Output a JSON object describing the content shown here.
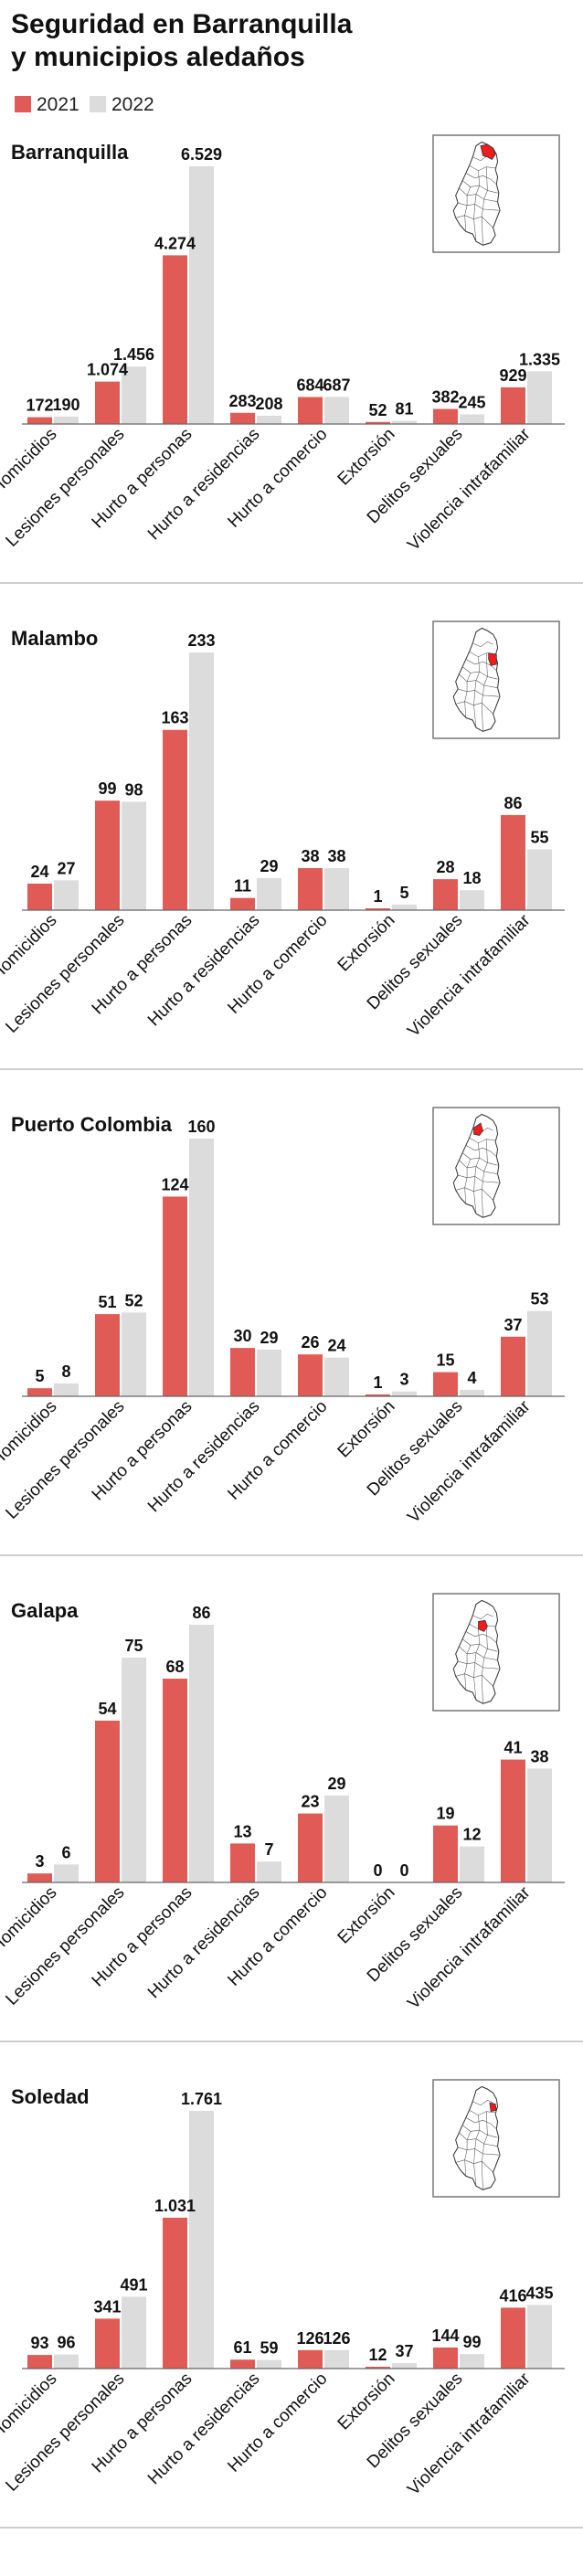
{
  "title_line1": "Seguridad en Barranquilla",
  "title_line2": "y municipios aledaños",
  "legend": [
    {
      "label": "2021",
      "color": "#e05b55"
    },
    {
      "label": "2022",
      "color": "#dcdcdc"
    }
  ],
  "colors": {
    "y2021": "#e05b55",
    "y2022": "#dcdcdc",
    "map_highlight": "#ee1c1c",
    "separator": "#bdbdbd"
  },
  "chart_data": [
    {
      "type": "bar",
      "title": "Barranquilla",
      "categories": [
        "Homicidios",
        "Lesiones personales",
        "Hurto a personas",
        "Hurto a residencias",
        "Hurto a comercio",
        "Extorsión",
        "Delitos sexuales",
        "Violencia intrafamiliar"
      ],
      "series": [
        {
          "name": "2021",
          "values": [
            172,
            1074,
            4274,
            283,
            684,
            52,
            382,
            929
          ],
          "labels": [
            "172",
            "1.074",
            "4.274",
            "283",
            "684",
            "52",
            "382",
            "929"
          ]
        },
        {
          "name": "2022",
          "values": [
            190,
            1456,
            6529,
            208,
            687,
            81,
            245,
            1335
          ],
          "labels": [
            "190",
            "1.456",
            "6.529",
            "208",
            "687",
            "81",
            "245",
            "1.335"
          ]
        }
      ],
      "map_highlight": "barranquilla",
      "ylim": [
        0,
        6529
      ]
    },
    {
      "type": "bar",
      "title": "Malambo",
      "categories": [
        "Homicidios",
        "Lesiones personales",
        "Hurto a personas",
        "Hurto a residencias",
        "Hurto a comercio",
        "Extorsión",
        "Delitos sexuales",
        "Violencia intrafamiliar"
      ],
      "series": [
        {
          "name": "2021",
          "values": [
            24,
            99,
            163,
            11,
            38,
            1,
            28,
            86
          ],
          "labels": [
            "24",
            "99",
            "163",
            "11",
            "38",
            "1",
            "28",
            "86"
          ]
        },
        {
          "name": "2022",
          "values": [
            27,
            98,
            233,
            29,
            38,
            5,
            18,
            55
          ],
          "labels": [
            "27",
            "98",
            "233",
            "29",
            "38",
            "5",
            "18",
            "55"
          ]
        }
      ],
      "map_highlight": "malambo",
      "ylim": [
        0,
        233
      ]
    },
    {
      "type": "bar",
      "title": "Puerto Colombia",
      "categories": [
        "Homicidios",
        "Lesiones personales",
        "Hurto a personas",
        "Hurto a residencias",
        "Hurto a comercio",
        "Extorsión",
        "Delitos sexuales",
        "Violencia intrafamiliar"
      ],
      "series": [
        {
          "name": "2021",
          "values": [
            5,
            51,
            124,
            30,
            26,
            1,
            15,
            37
          ],
          "labels": [
            "5",
            "51",
            "124",
            "30",
            "26",
            "1",
            "15",
            "37"
          ]
        },
        {
          "name": "2022",
          "values": [
            8,
            52,
            160,
            29,
            24,
            3,
            4,
            53
          ],
          "labels": [
            "8",
            "52",
            "160",
            "29",
            "24",
            "3",
            "4",
            "53"
          ]
        }
      ],
      "map_highlight": "puerto-colombia",
      "ylim": [
        0,
        160
      ]
    },
    {
      "type": "bar",
      "title": "Galapa",
      "categories": [
        "Homicidios",
        "Lesiones personales",
        "Hurto a personas",
        "Hurto a residencias",
        "Hurto a comercio",
        "Extorsión",
        "Delitos sexuales",
        "Violencia intrafamiliar"
      ],
      "series": [
        {
          "name": "2021",
          "values": [
            3,
            54,
            68,
            13,
            23,
            0,
            19,
            41
          ],
          "labels": [
            "3",
            "54",
            "68",
            "13",
            "23",
            "0",
            "19",
            "41"
          ]
        },
        {
          "name": "2022",
          "values": [
            6,
            75,
            86,
            7,
            29,
            0,
            12,
            38
          ],
          "labels": [
            "6",
            "75",
            "86",
            "7",
            "29",
            "0",
            "12",
            "38"
          ]
        }
      ],
      "map_highlight": "galapa",
      "ylim": [
        0,
        86
      ]
    },
    {
      "type": "bar",
      "title": "Soledad",
      "categories": [
        "Homicidios",
        "Lesiones personales",
        "Hurto a personas",
        "Hurto a residencias",
        "Hurto a comercio",
        "Extorsión",
        "Delitos sexuales",
        "Violencia intrafamiliar"
      ],
      "series": [
        {
          "name": "2021",
          "values": [
            93,
            341,
            1031,
            61,
            126,
            12,
            144,
            416
          ],
          "labels": [
            "93",
            "341",
            "1.031",
            "61",
            "126",
            "12",
            "144",
            "416"
          ]
        },
        {
          "name": "2022",
          "values": [
            96,
            491,
            1761,
            59,
            126,
            37,
            99,
            435
          ],
          "labels": [
            "96",
            "491",
            "1.761",
            "59",
            "126",
            "37",
            "99",
            "435"
          ]
        }
      ],
      "map_highlight": "soledad",
      "ylim": [
        0,
        1761
      ]
    }
  ]
}
